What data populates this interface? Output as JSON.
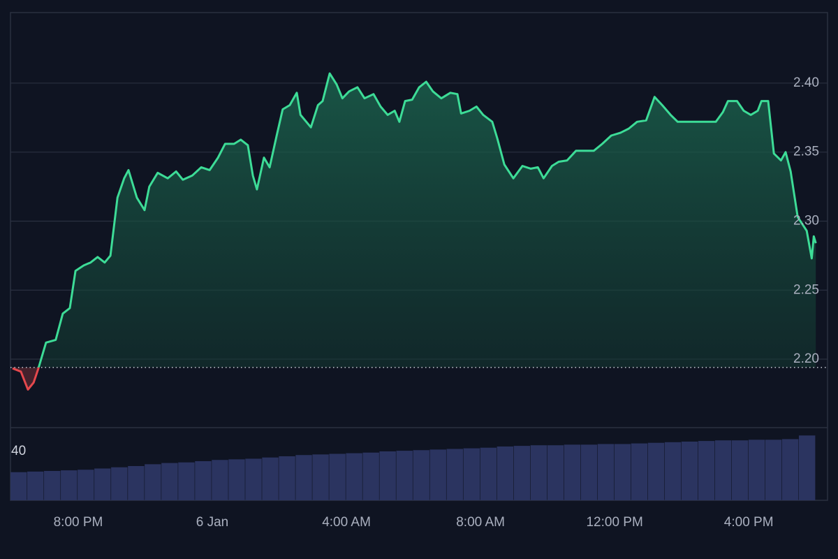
{
  "chart_data": {
    "type": "line",
    "xlim": [
      -6.02,
      18.35
    ],
    "xticks": [
      {
        "value": -4,
        "label": "8:00 PM"
      },
      {
        "value": 0,
        "label": "6 Jan"
      },
      {
        "value": 4,
        "label": "4:00 AM"
      },
      {
        "value": 8,
        "label": "8:00 AM"
      },
      {
        "value": 12,
        "label": "12:00 PM"
      },
      {
        "value": 16,
        "label": "4:00 PM"
      }
    ],
    "ylim": [
      2.1504,
      2.4511
    ],
    "yticks": [
      {
        "value": 2.2,
        "label": "2.20"
      },
      2.25,
      {
        "value": 2.3,
        "label": "2.30"
      },
      2.35,
      {
        "value": 2.4,
        "label": "2.40"
      }
    ],
    "grid": true,
    "baseline": 2.194,
    "up_color": "#3ddc97",
    "down_color": "#e5484d",
    "series": [
      {
        "x": [
          -5.96,
          -5.71,
          -5.5,
          -5.33,
          -5.19,
          -4.96,
          -4.67,
          -4.46,
          -4.25,
          -4.08,
          -3.83,
          -3.63,
          -3.42,
          -3.21,
          -3.04,
          -2.83,
          -2.63,
          -2.5,
          -2.25,
          -2.02,
          -1.88,
          -1.63,
          -1.33,
          -1.08,
          -0.88,
          -0.6,
          -0.33,
          -0.08,
          0.17,
          0.38,
          0.65,
          0.85,
          1.06,
          1.21,
          1.33,
          1.54,
          1.71,
          1.92,
          2.1,
          2.31,
          2.52,
          2.63,
          2.94,
          3.15,
          3.29,
          3.5,
          3.71,
          3.88,
          4.08,
          4.33,
          4.54,
          4.81,
          5.02,
          5.23,
          5.44,
          5.58,
          5.75,
          5.96,
          6.17,
          6.38,
          6.58,
          6.83,
          7.1,
          7.31,
          7.42,
          7.67,
          7.88,
          8.08,
          8.35,
          8.5,
          8.71,
          8.98,
          9.25,
          9.5,
          9.71,
          9.88,
          10.13,
          10.33,
          10.58,
          10.85,
          11.13,
          11.38,
          11.63,
          11.9,
          12.17,
          12.42,
          12.67,
          12.94,
          13.19,
          13.42,
          13.67,
          13.88,
          14.19,
          14.5,
          14.75,
          15.02,
          15.23,
          15.38,
          15.65,
          15.85,
          16.06,
          16.27,
          16.38,
          16.58,
          16.75,
          16.96,
          17.1,
          17.25,
          17.46,
          17.73,
          17.88,
          17.94,
          18.0
        ],
        "values": [
          2.1934,
          2.191,
          2.178,
          2.183,
          2.193,
          2.212,
          2.214,
          2.233,
          2.237,
          2.264,
          2.268,
          2.27,
          2.274,
          2.27,
          2.275,
          2.317,
          2.331,
          2.337,
          2.317,
          2.308,
          2.325,
          2.335,
          2.331,
          2.336,
          2.33,
          2.333,
          2.339,
          2.337,
          2.346,
          2.356,
          2.356,
          2.359,
          2.355,
          2.333,
          2.323,
          2.346,
          2.339,
          2.362,
          2.381,
          2.384,
          2.393,
          2.377,
          2.368,
          2.384,
          2.387,
          2.407,
          2.399,
          2.389,
          2.394,
          2.397,
          2.389,
          2.392,
          2.383,
          2.377,
          2.38,
          2.372,
          2.387,
          2.388,
          2.397,
          2.401,
          2.394,
          2.389,
          2.393,
          2.392,
          2.378,
          2.38,
          2.383,
          2.377,
          2.372,
          2.36,
          2.341,
          2.331,
          2.34,
          2.338,
          2.339,
          2.331,
          2.34,
          2.343,
          2.344,
          2.351,
          2.351,
          2.351,
          2.356,
          2.362,
          2.364,
          2.367,
          2.372,
          2.373,
          2.39,
          2.384,
          2.377,
          2.372,
          2.372,
          2.372,
          2.372,
          2.372,
          2.379,
          2.387,
          2.387,
          2.38,
          2.377,
          2.38,
          2.387,
          2.387,
          2.349,
          2.344,
          2.35,
          2.336,
          2.303,
          2.293,
          2.273,
          2.289,
          2.284
        ]
      }
    ],
    "volume": {
      "color": "#2b3460",
      "ylim": [
        0,
        59.4
      ],
      "yticks": [
        40
      ],
      "values": [
        23,
        23.5,
        24,
        24.5,
        25,
        26,
        27,
        28,
        29.5,
        30.5,
        31,
        32,
        33,
        33.5,
        34,
        35,
        36,
        37,
        37.5,
        38,
        38.5,
        39,
        40,
        40.5,
        41,
        41.5,
        42,
        42.5,
        43,
        44,
        44.5,
        45,
        45,
        45.5,
        45.5,
        46,
        46,
        46.5,
        47,
        47.5,
        48,
        48.5,
        49,
        49,
        49.5,
        49.5,
        50,
        53
      ]
    }
  }
}
